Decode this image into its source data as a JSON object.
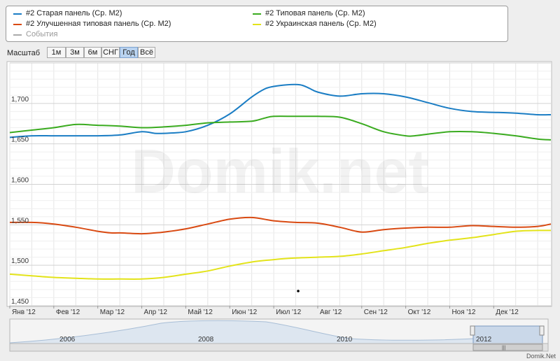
{
  "legend": {
    "items": [
      {
        "label": "#2 Старая панель (Ср. М2)",
        "color": "#1a7dc4"
      },
      {
        "label": "#2 Улучшенная типовая панель (Ср. М2)",
        "color": "#d94a12"
      },
      {
        "label": "События",
        "color": "#aaaaaa"
      },
      {
        "label": "#2 Типовая панель (Ср. М2)",
        "color": "#3aab1f"
      },
      {
        "label": "#2 Украинская панель (Ср. М2)",
        "color": "#e3e31a"
      }
    ]
  },
  "zoom": {
    "label": "Масштаб",
    "buttons": [
      "1м",
      "3м",
      "6м",
      "СНГ",
      "Год",
      "Всё"
    ],
    "active": "Год"
  },
  "watermark": "Domik.net",
  "credit": "Domik.Net",
  "navigator": {
    "labels": [
      "2006",
      "2008",
      "2010",
      "2012"
    ]
  },
  "chart_data": {
    "type": "line",
    "x_labels": [
      "Янв '12",
      "Фев '12",
      "Мар '12",
      "Апр '12",
      "Май '12",
      "Июн '12",
      "Июл '12",
      "Авг '12",
      "Сен '12",
      "Окт '12",
      "Ноя '12",
      "Дек '12"
    ],
    "y_ticks": [
      "1,450",
      "1,500",
      "1,550",
      "1,600",
      "1,650",
      "1,700"
    ],
    "ylim": [
      1450,
      1750
    ],
    "xlim": [
      0,
      12.3
    ],
    "grid": true,
    "series": [
      {
        "name": "#2 Старая панель (Ср. М2)",
        "color": "#1a7dc4",
        "x": [
          0,
          0.5,
          1,
          1.5,
          2,
          2.5,
          3,
          3.3,
          3.5,
          4,
          4.5,
          5,
          5.5,
          5.8,
          6,
          6.3,
          6.6,
          6.8,
          7,
          7.5,
          8,
          8.5,
          9,
          9.5,
          10,
          10.5,
          11,
          11.5,
          12,
          12.3
        ],
        "y": [
          1658,
          1660,
          1660,
          1660,
          1660,
          1661,
          1665,
          1663,
          1663,
          1665,
          1673,
          1687,
          1708,
          1718,
          1721,
          1723,
          1723,
          1719,
          1714,
          1709,
          1712,
          1712,
          1708,
          1701,
          1694,
          1690,
          1689,
          1688,
          1686,
          1686
        ]
      },
      {
        "name": "#2 Типовая панель (Ср. М2)",
        "color": "#3aab1f",
        "x": [
          0,
          0.5,
          1,
          1.5,
          2,
          2.5,
          3,
          3.5,
          4,
          4.5,
          5,
          5.5,
          5.8,
          6,
          6.5,
          7,
          7.5,
          8,
          8.5,
          9,
          9.2,
          9.5,
          10,
          10.5,
          11,
          11.5,
          12,
          12.3
        ],
        "y": [
          1664,
          1667,
          1670,
          1674,
          1673,
          1672,
          1670,
          1671,
          1673,
          1676,
          1677,
          1678,
          1682,
          1684,
          1684,
          1684,
          1683,
          1675,
          1665,
          1660,
          1660,
          1662,
          1665,
          1665,
          1663,
          1660,
          1656,
          1655
        ]
      },
      {
        "name": "#2 Улучшенная типовая панель (Ср. М2)",
        "color": "#d94a12",
        "x": [
          0,
          0.5,
          1,
          1.5,
          2,
          2.3,
          2.5,
          3,
          3.3,
          3.5,
          4,
          4.5,
          5,
          5.5,
          6,
          6.5,
          7,
          7.5,
          8,
          8.5,
          9,
          9.5,
          10,
          10.5,
          11,
          11.5,
          12,
          12.3
        ],
        "y": [
          1553,
          1553,
          1551,
          1547,
          1542,
          1540,
          1540,
          1539,
          1540,
          1541,
          1545,
          1551,
          1557,
          1559,
          1555,
          1553,
          1552,
          1547,
          1541,
          1544,
          1546,
          1547,
          1547,
          1549,
          1548,
          1547,
          1548,
          1551
        ]
      },
      {
        "name": "#2 Украинская панель (Ср. М2)",
        "color": "#e3e31a",
        "x": [
          0,
          0.5,
          1,
          1.5,
          2,
          2.5,
          3,
          3.5,
          4,
          4.5,
          5,
          5.5,
          6,
          6.5,
          7,
          7.5,
          8,
          8.5,
          9,
          9.5,
          10,
          10.5,
          11,
          11.5,
          12,
          12.3
        ],
        "y": [
          1489,
          1487,
          1485,
          1484,
          1483,
          1483,
          1483,
          1485,
          1489,
          1493,
          1499,
          1504,
          1507,
          1509,
          1510,
          1511,
          1514,
          1518,
          1522,
          1527,
          1531,
          1534,
          1538,
          1542,
          1543,
          1543
        ]
      }
    ]
  }
}
